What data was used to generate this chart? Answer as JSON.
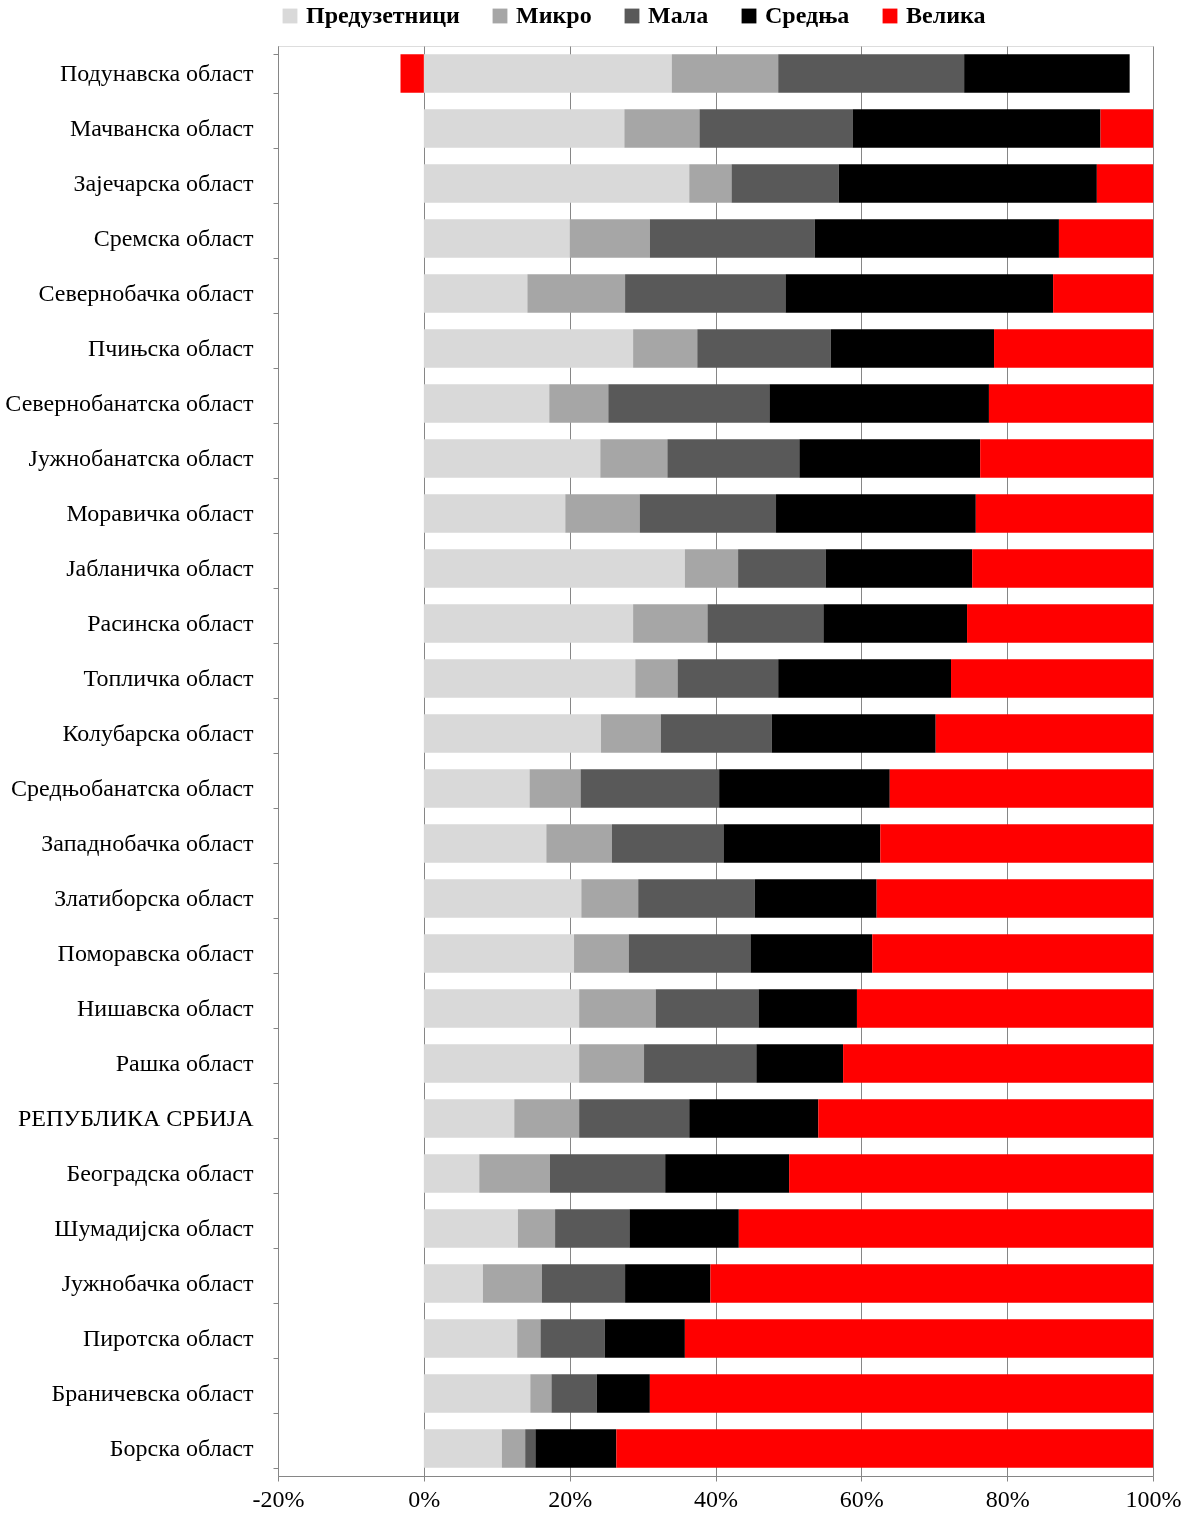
{
  "chart_data": {
    "type": "bar",
    "orientation": "horizontal",
    "stacked": true,
    "categories": [
      "Подунавска област",
      "Мачванска област",
      "Зајечарска област",
      "Сремска област",
      "Севернобачка област",
      "Пчињска област",
      "Севернобанатска област",
      "Јужнобанатска област",
      "Моравичка област",
      "Јабланичка област",
      "Расинска област",
      "Топличка област",
      "Колубарска област",
      "Средњобанатска област",
      "Западнобачка област",
      "Златиборска област",
      "Поморавска област",
      "Нишавска област",
      "Рашка област",
      "РЕПУБЛИКА СРБИЈА",
      "Београдска област",
      "Шумадијска област",
      "Јужнобачка област",
      "Пиротска област",
      "Браничевска област",
      "Борска област"
    ],
    "series": [
      {
        "name": "Предузетници",
        "color": "#d9d9d9",
        "values": [
          34.0,
          27.5,
          36.4,
          20.0,
          14.2,
          28.7,
          17.2,
          24.2,
          19.4,
          35.8,
          28.7,
          29.0,
          24.3,
          14.5,
          16.8,
          21.6,
          20.6,
          21.3,
          21.3,
          12.4,
          7.6,
          12.9,
          8.1,
          12.8,
          14.6,
          10.7
        ]
      },
      {
        "name": "Микро",
        "color": "#a6a6a6",
        "values": [
          14.6,
          10.3,
          5.8,
          11.0,
          13.4,
          8.8,
          8.1,
          9.2,
          10.2,
          7.3,
          10.2,
          5.8,
          8.2,
          7.0,
          9.0,
          7.8,
          7.5,
          10.5,
          8.9,
          8.9,
          9.7,
          5.1,
          8.1,
          3.2,
          2.9,
          3.2
        ]
      },
      {
        "name": "Мала",
        "color": "#595959",
        "values": [
          25.5,
          21.0,
          14.7,
          22.6,
          22.0,
          18.3,
          22.1,
          18.1,
          18.7,
          12.0,
          15.9,
          13.8,
          15.2,
          19.0,
          15.3,
          16.0,
          16.7,
          14.1,
          15.4,
          15.1,
          15.8,
          10.2,
          11.4,
          8.8,
          6.2,
          1.4
        ]
      },
      {
        "name": "Средња",
        "color": "#000000",
        "values": [
          22.7,
          34.0,
          35.4,
          33.5,
          36.7,
          22.4,
          30.1,
          24.8,
          27.4,
          20.1,
          19.7,
          23.7,
          22.5,
          23.4,
          21.5,
          16.7,
          16.7,
          13.5,
          11.9,
          17.7,
          17.0,
          15.0,
          11.7,
          11.0,
          7.3,
          11.1
        ]
      },
      {
        "name": "Велика",
        "color": "#ff0000",
        "values": [
          -3.2,
          7.2,
          7.7,
          12.9,
          13.7,
          21.8,
          22.5,
          23.7,
          24.3,
          24.8,
          25.5,
          27.7,
          29.8,
          36.1,
          37.4,
          37.9,
          38.5,
          40.6,
          42.5,
          45.9,
          49.9,
          56.8,
          60.7,
          64.2,
          69.0,
          73.6
        ]
      }
    ],
    "xlim": [
      -20,
      100
    ],
    "xticks": [
      {
        "value": -20,
        "label": "-20%"
      },
      {
        "value": 0,
        "label": "0%"
      },
      {
        "value": 20,
        "label": "20%"
      },
      {
        "value": 40,
        "label": "40%"
      },
      {
        "value": 60,
        "label": "60%"
      },
      {
        "value": 80,
        "label": "80%"
      },
      {
        "value": 100,
        "label": "100%"
      }
    ],
    "grid": "x",
    "legend": "top"
  }
}
